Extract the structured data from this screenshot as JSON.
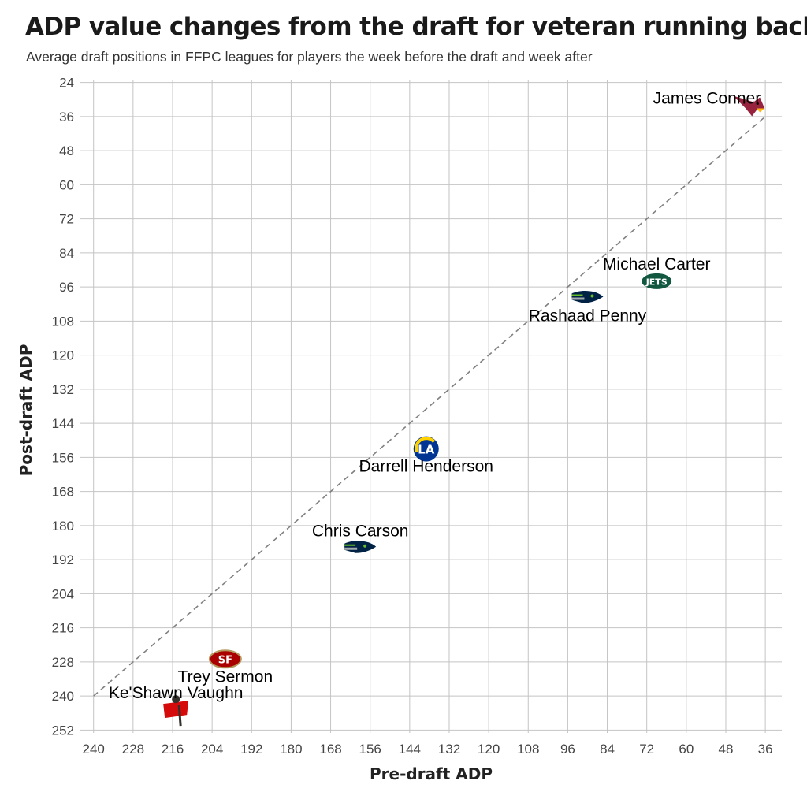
{
  "chart_data": {
    "type": "scatter",
    "title": "ADP value changes from the draft for veteran running backs",
    "subtitle": "Average draft positions in FFPC leagues for players the week before the draft and week after",
    "xlabel": "Pre-draft ADP",
    "ylabel": "Post-draft ADP",
    "xlim": [
      244,
      31
    ],
    "ylim": [
      23,
      253
    ],
    "x_reversed": true,
    "y_reversed": true,
    "xticks": [
      240,
      228,
      216,
      204,
      192,
      180,
      168,
      156,
      144,
      132,
      120,
      108,
      96,
      84,
      72,
      60,
      48,
      36
    ],
    "yticks": [
      24,
      36,
      48,
      60,
      72,
      84,
      96,
      108,
      120,
      132,
      144,
      156,
      168,
      180,
      192,
      204,
      216,
      228,
      240,
      252
    ],
    "grid": true,
    "reference_line": {
      "style": "dashed",
      "color": "#808080",
      "from": [
        240,
        240
      ],
      "to": [
        36,
        36
      ]
    },
    "points": [
      {
        "name": "James Conner",
        "team": "ARI",
        "icon": "cardinals-logo-icon",
        "x": 41,
        "y": 32,
        "label_pos": "left"
      },
      {
        "name": "Michael Carter",
        "team": "NYJ",
        "icon": "jets-logo-icon",
        "x": 69,
        "y": 94,
        "label_pos": "above"
      },
      {
        "name": "Rashaad Penny",
        "team": "SEA",
        "icon": "seahawks-logo-icon",
        "x": 90,
        "y": 100,
        "label_pos": "below"
      },
      {
        "name": "Darrell Henderson",
        "team": "LAR",
        "icon": "rams-logo-icon",
        "x": 139,
        "y": 153,
        "label_pos": "below"
      },
      {
        "name": "Chris Carson",
        "team": "SEA",
        "icon": "seahawks-logo-icon",
        "x": 159,
        "y": 188,
        "label_pos": "above"
      },
      {
        "name": "Trey Sermon",
        "team": "SF",
        "icon": "49ers-logo-icon",
        "x": 200,
        "y": 227,
        "label_pos": "below"
      },
      {
        "name": "Ke'Shawn Vaughn",
        "team": "TB",
        "icon": "buccaneers-logo-icon",
        "x": 215,
        "y": 245,
        "label_pos": "above"
      }
    ],
    "team_colors": {
      "ARI": "#97233F",
      "NYJ": "#125740",
      "SEA": "#002244",
      "LAR": "#003594",
      "SF": "#AA0000",
      "TB": "#D50A0A"
    }
  }
}
